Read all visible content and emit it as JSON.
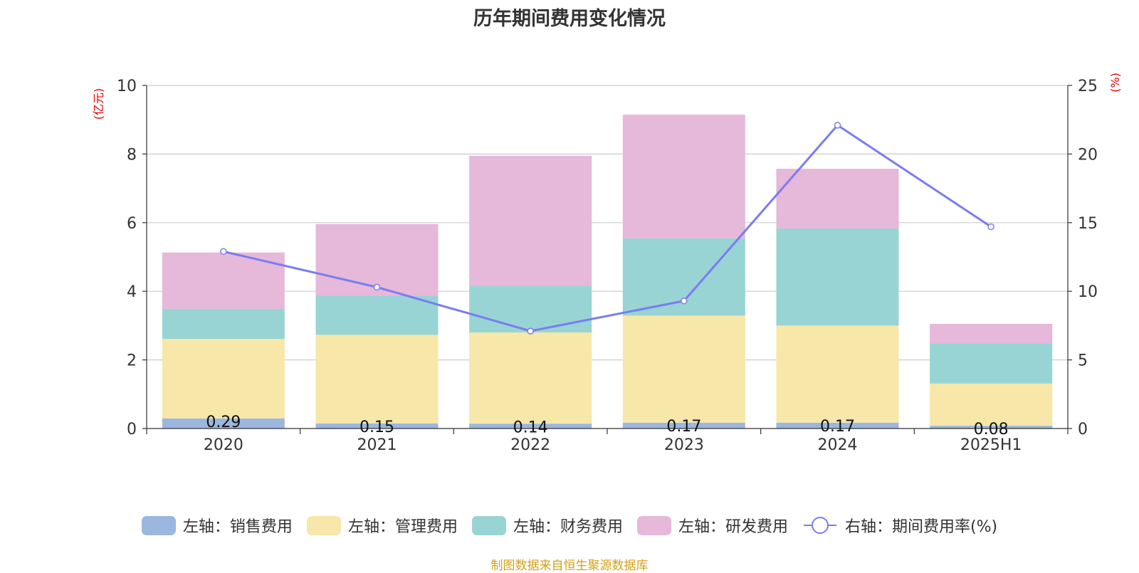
{
  "chart_data": {
    "type": "bar",
    "stacked": true,
    "title": "历年期间费用变化情况",
    "categories": [
      "2020",
      "2021",
      "2022",
      "2023",
      "2024",
      "2025H1"
    ],
    "y_left": {
      "label": "(亿元)",
      "ylim": [
        0,
        10
      ],
      "ticks": [
        "0",
        "2",
        "4",
        "6",
        "8",
        "10"
      ]
    },
    "y_right": {
      "label": "(%)",
      "ylim": [
        0,
        25
      ],
      "ticks": [
        "0",
        "5",
        "10",
        "15",
        "20",
        "25"
      ]
    },
    "grid": true,
    "legend_position": "bottom",
    "series": [
      {
        "name": "左轴：销售费用",
        "axis": "left",
        "kind": "bar",
        "color": "#9bb7e0",
        "values": [
          0.29,
          0.15,
          0.14,
          0.17,
          0.17,
          0.08
        ],
        "labels": [
          "0.29",
          "0.15",
          "0.14",
          "0.17",
          "0.17",
          "0.08"
        ]
      },
      {
        "name": "左轴：管理费用",
        "axis": "left",
        "kind": "bar",
        "color": "#f7e7a8",
        "values": [
          2.32,
          2.58,
          2.66,
          3.12,
          2.83,
          1.23
        ]
      },
      {
        "name": "左轴：财务费用",
        "axis": "left",
        "kind": "bar",
        "color": "#98d4d4",
        "values": [
          0.88,
          1.14,
          1.35,
          2.25,
          2.83,
          1.17
        ]
      },
      {
        "name": "左轴：研发费用",
        "axis": "left",
        "kind": "bar",
        "color": "#e6b8d9",
        "values": [
          1.64,
          2.09,
          3.8,
          3.61,
          1.74,
          0.57
        ]
      },
      {
        "name": "右轴：期间费用率(%)",
        "axis": "right",
        "kind": "line",
        "color": "#7b7cf0",
        "values": [
          12.9,
          10.3,
          7.1,
          9.3,
          22.1,
          14.7
        ]
      }
    ]
  },
  "source_note": "制图数据来自恒生聚源数据库"
}
